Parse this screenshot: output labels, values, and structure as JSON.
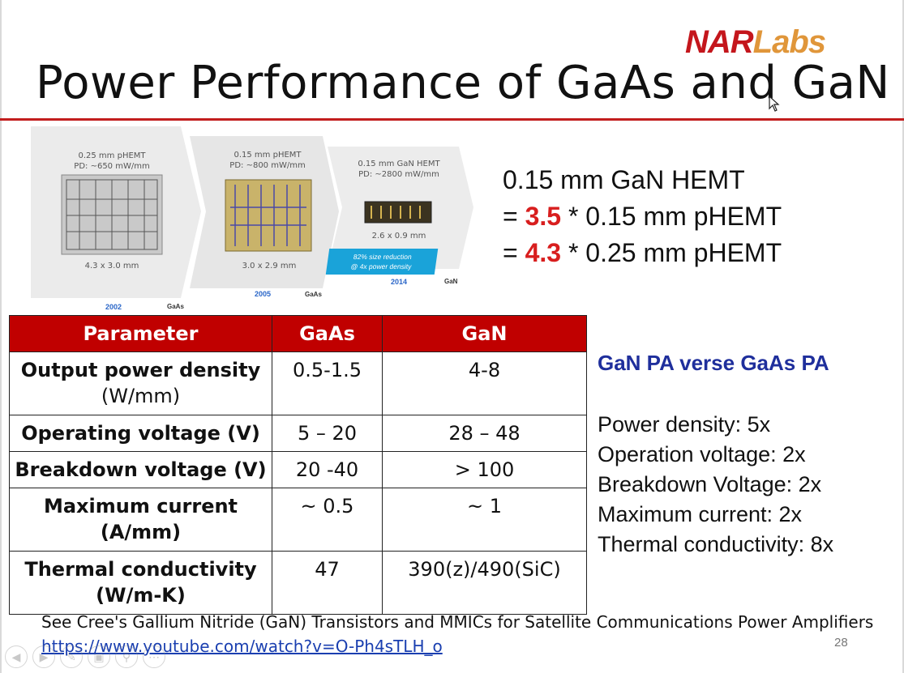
{
  "logo": {
    "part1": "NAR",
    "part2": "Labs"
  },
  "slide": {
    "title": "Power Performance of GaAs and GaN",
    "page_number": "28"
  },
  "figure": {
    "chips": [
      {
        "spec_line1": "0.25 mm pHEMT",
        "spec_line2": "PD: ~650 mW/mm",
        "size": "4.3 x 3.0 mm",
        "year": "2002",
        "material": "GaAs"
      },
      {
        "spec_line1": "0.15 mm pHEMT",
        "spec_line2": "PD: ~800 mW/mm",
        "size": "3.0 x 2.9 mm",
        "year": "2005",
        "material": "GaAs"
      },
      {
        "spec_line1": "0.15 mm GaN HEMT",
        "spec_line2": "PD: ~2800 mW/mm",
        "size": "2.6 x 0.9 mm",
        "year": "2014",
        "material": "GaN"
      }
    ],
    "badge_line1": "82% size reduction",
    "badge_line2": "@ 4x power density"
  },
  "comparison": {
    "line1": "0.15 mm GaN HEMT",
    "line2_prefix": "= ",
    "line2_value": "3.5",
    "line2_suffix": " * 0.15 mm pHEMT",
    "line3_prefix": "= ",
    "line3_value": "4.3",
    "line3_suffix": " * 0.25 mm pHEMT"
  },
  "table": {
    "headers": [
      "Parameter",
      "GaAs",
      "GaN"
    ],
    "rows": [
      {
        "param": "Output power density",
        "param_unit": "(W/mm)",
        "gaas": "0.5-1.5",
        "gan": "4-8"
      },
      {
        "param": "Operating voltage (V)",
        "param_unit": "",
        "gaas": "5 – 20",
        "gan": "28 – 48"
      },
      {
        "param": "Breakdown voltage (V)",
        "param_unit": "",
        "gaas": "20 -40",
        "gan": "> 100"
      },
      {
        "param": "Maximum current",
        "param_unit": "(A/mm)",
        "gaas": "~ 0.5",
        "gan": "~ 1"
      },
      {
        "param": "Thermal conductivity",
        "param_unit": "(W/m-K)",
        "gaas": "47",
        "gan": "390(z)/490(SiC)"
      }
    ]
  },
  "summary": {
    "heading": "GaN PA verse GaAs PA",
    "items": [
      "Power density: 5x",
      "Operation voltage: 2x",
      "Breakdown Voltage: 2x",
      "Maximum current: 2x",
      "Thermal conductivity: 8x"
    ]
  },
  "footer": {
    "note": "See Cree's Gallium Nitride (GaN) Transistors and MMICs for Satellite Communications Power Amplifiers",
    "link": "https://www.youtube.com/watch?v=O-Ph4sTLH_o"
  },
  "toolbar": {
    "icons": [
      "back-arrow-icon",
      "forward-arrow-icon",
      "pen-icon",
      "slides-icon",
      "search-icon",
      "more-icon"
    ]
  },
  "colors": {
    "accent_red": "#c21d1d",
    "table_header": "#c00000",
    "heading_blue": "#1f2f9c",
    "badge_blue": "#1aa3d9"
  }
}
